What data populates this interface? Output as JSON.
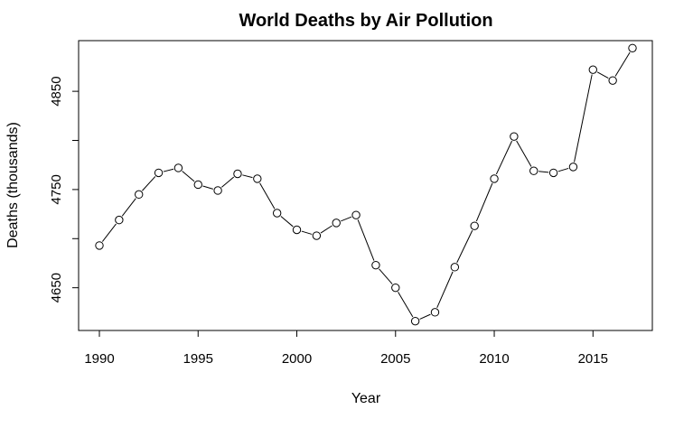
{
  "chart_data": {
    "type": "line",
    "title": "World Deaths by Air Pollution",
    "xlabel": "Year",
    "ylabel": "Deaths (thousands)",
    "x": [
      1990,
      1991,
      1992,
      1993,
      1994,
      1995,
      1996,
      1997,
      1998,
      1999,
      2000,
      2001,
      2002,
      2003,
      2004,
      2005,
      2006,
      2007,
      2008,
      2009,
      2010,
      2011,
      2012,
      2013,
      2014,
      2015,
      2016,
      2017
    ],
    "series": [
      {
        "values": [
          4693,
          4719,
          4745,
          4767,
          4772,
          4755,
          4749,
          4766,
          4761,
          4726,
          4709,
          4703,
          4716,
          4724,
          4673,
          4650,
          4616,
          4625,
          4671,
          4713,
          4761,
          4804,
          4769,
          4767,
          4773,
          4872,
          4861,
          4894
        ]
      }
    ],
    "xlim": [
      1990,
      2017
    ],
    "ylim": [
      4612,
      4897
    ],
    "xticks": [
      1990,
      1995,
      2000,
      2005,
      2010,
      2015
    ],
    "yticks": [
      4650,
      4750,
      4850
    ],
    "grid": false,
    "markers": "open-circle",
    "line_color": "#000000"
  }
}
